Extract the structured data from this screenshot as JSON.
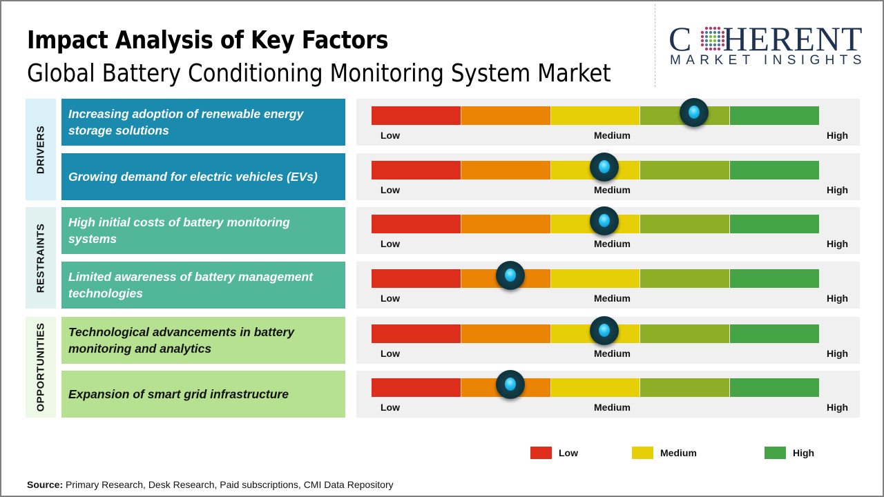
{
  "header": {
    "title": "Impact Analysis of Key Factors",
    "subtitle": "Global Battery Conditioning Monitoring System Market"
  },
  "logo": {
    "word_first": "C",
    "word_rest": "HERENT",
    "tagline": "MARKET INSIGHTS"
  },
  "scale_labels": {
    "low": "Low",
    "medium": "Medium",
    "high": "High"
  },
  "segment_colors": [
    "#dd2e1b",
    "#eb8402",
    "#e6cf06",
    "#8fae28",
    "#45a546"
  ],
  "chart_data": {
    "type": "table",
    "title": "Impact Analysis of Key Factors",
    "subtitle": "Global Battery Conditioning Monitoring System Market",
    "scale": [
      "Low",
      "Medium",
      "High"
    ],
    "scale_range": [
      0,
      1
    ],
    "categories": [
      {
        "name": "DRIVERS",
        "color": "#1b8aaf",
        "label_bg": "#d9f0f8",
        "text_color": "#ffffff",
        "factors": [
          {
            "label": "Increasing adoption of renewable energy storage solutions",
            "impact": 0.72
          },
          {
            "label": "Growing demand for electric vehicles (EVs)",
            "impact": 0.52
          }
        ]
      },
      {
        "name": "RESTRAINTS",
        "color": "#52b698",
        "label_bg": "#e1f2ee",
        "text_color": "#ffffff",
        "factors": [
          {
            "label": "High initial costs of battery monitoring systems",
            "impact": 0.52
          },
          {
            "label": "Limited awareness of battery management technologies",
            "impact": 0.31
          }
        ]
      },
      {
        "name": "OPPORTUNITIES",
        "color": "#b5e190",
        "label_bg": "#eef8e6",
        "text_color": "#111111",
        "factors": [
          {
            "label": "Technological advancements in battery monitoring and analytics",
            "impact": 0.52
          },
          {
            "label": "Expansion of smart grid infrastructure",
            "impact": 0.31
          }
        ]
      }
    ],
    "legend": [
      {
        "label": "Low",
        "color": "#dd2e1b"
      },
      {
        "label": "Medium",
        "color": "#e6cf06"
      },
      {
        "label": "High",
        "color": "#45a546"
      }
    ]
  },
  "footer": {
    "source_label": "Source:",
    "source_text": " Primary Research, Desk Research, Paid subscriptions, CMI Data Repository"
  }
}
